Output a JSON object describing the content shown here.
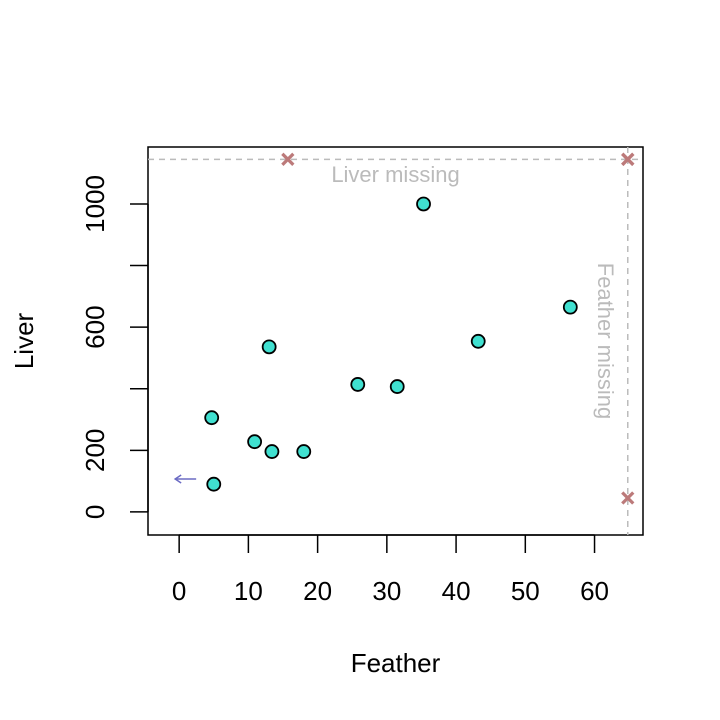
{
  "chart_data": {
    "type": "scatter",
    "xlabel": "Feather",
    "ylabel": "Liver",
    "xlim": [
      -4.5,
      67
    ],
    "ylim": [
      -75,
      1185
    ],
    "x_ticks": [
      0,
      10,
      20,
      30,
      40,
      50,
      60
    ],
    "y_ticks": [
      0,
      200,
      400,
      600,
      800,
      1000
    ],
    "y_tick_labels": [
      "0",
      "200",
      "",
      "600",
      "",
      "1000"
    ],
    "grid": false,
    "points": [
      {
        "x": 4.7,
        "y": 306
      },
      {
        "x": 5.0,
        "y": 90
      },
      {
        "x": 10.9,
        "y": 228
      },
      {
        "x": 13.0,
        "y": 536
      },
      {
        "x": 13.4,
        "y": 196
      },
      {
        "x": 18.0,
        "y": 196
      },
      {
        "x": 25.8,
        "y": 414
      },
      {
        "x": 31.5,
        "y": 407
      },
      {
        "x": 35.3,
        "y": 1000
      },
      {
        "x": 43.2,
        "y": 554
      },
      {
        "x": 56.5,
        "y": 665
      }
    ],
    "point_color": "#40E0D0",
    "missing_line_x": 64.8,
    "missing_line_y": 1145,
    "liver_missing_label": "Liver missing",
    "feather_missing_label": "Feather missing",
    "liver_missing_points": [
      {
        "x": 15.7
      },
      {
        "x": 64.8
      }
    ],
    "feather_missing_points": [
      {
        "y": 1145
      },
      {
        "y": 45
      }
    ],
    "missing_marker": "x",
    "missing_marker_color": "#BC7A7A",
    "offscale_arrow": {
      "x": 0,
      "y": 107,
      "direction": "left",
      "color": "#6B6BC4"
    },
    "missing_label_color": "#BBBBBB"
  }
}
